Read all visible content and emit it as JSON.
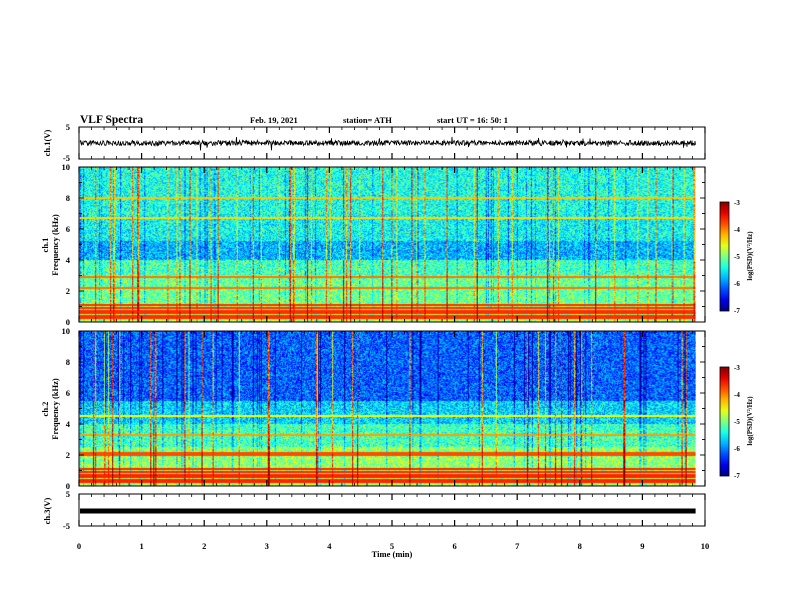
{
  "header": {
    "title": "VLF Spectra",
    "date": "Feb. 19, 2021",
    "station": "station= ATH",
    "start": "start  UT =   16: 50: 1"
  },
  "chart_data": [
    {
      "type": "line",
      "title": "",
      "ylabel": "ch.1(V)",
      "xlabel": "",
      "xlim": [
        0,
        10
      ],
      "ylim": [
        -5,
        5
      ],
      "yticks": [
        "5",
        "-5"
      ],
      "series": [
        {
          "x": [
            0,
            9.85
          ],
          "values": [
            0.0,
            0.0
          ]
        }
      ],
      "data_extent": [
        0,
        9.85
      ],
      "note_signal": "noisy waveform with amplitude about ±1 V around 0"
    },
    {
      "type": "heatmap",
      "title": "",
      "ylabel_line1": "ch.1",
      "ylabel_line2": "Frequency (kHz)",
      "xlim": [
        0,
        10
      ],
      "ylim": [
        0,
        10
      ],
      "yticks": [
        "0",
        "2",
        "4",
        "6",
        "8",
        "10"
      ],
      "data_extent": [
        0,
        9.85
      ],
      "colorbar": {
        "label": "log(PSD)(V²/Hz)",
        "range": [
          -7,
          -3
        ],
        "ticks": [
          "-3",
          "-4",
          "-5",
          "-6",
          "-7"
        ]
      },
      "bands_khz": [
        0.2,
        0.35,
        0.55,
        0.7,
        0.9,
        1.05,
        2.2,
        2.9,
        6.7,
        8.0
      ]
    },
    {
      "type": "heatmap",
      "title": "",
      "ylabel_line1": "ch.2",
      "ylabel_line2": "Frequency (kHz)",
      "xlim": [
        0,
        10
      ],
      "ylim": [
        0,
        10
      ],
      "yticks": [
        "0",
        "2",
        "4",
        "6",
        "8",
        "10"
      ],
      "data_extent": [
        0,
        9.85
      ],
      "colorbar": {
        "label": "log(PSD)(V²/Hz)",
        "range": [
          -7,
          -3
        ],
        "ticks": [
          "-3",
          "-4",
          "-5",
          "-6",
          "-7"
        ]
      },
      "bands_khz": [
        0.2,
        0.35,
        0.55,
        0.7,
        0.9,
        1.05,
        2.0,
        2.1,
        3.3,
        4.5
      ]
    },
    {
      "type": "line",
      "title": "",
      "ylabel": "ch.3(V)",
      "xlabel": "Time (min)",
      "xlim": [
        0,
        10
      ],
      "ylim": [
        -5,
        5
      ],
      "yticks": [
        "5",
        "-5"
      ],
      "xticks": [
        "0",
        "1",
        "2",
        "3",
        "4",
        "5",
        "6",
        "7",
        "8",
        "9",
        "10"
      ],
      "series": [
        {
          "x": [
            0,
            9.85
          ],
          "values": [
            0.0,
            0.0
          ]
        }
      ],
      "data_extent": [
        0,
        9.85
      ]
    }
  ]
}
